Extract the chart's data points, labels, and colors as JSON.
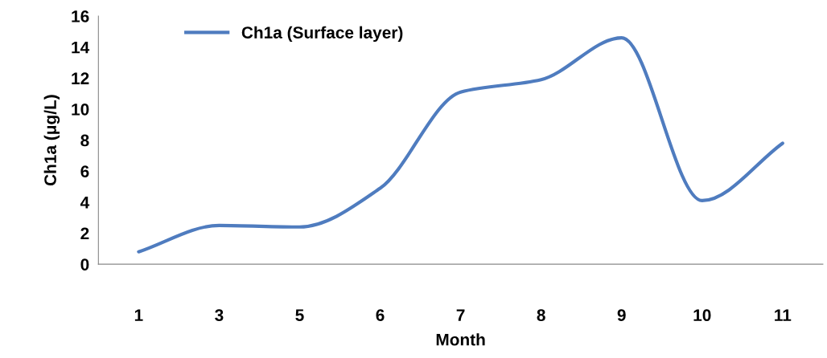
{
  "chart_data": {
    "type": "line",
    "xlabel": "Month",
    "ylabel": "Ch1a (μg/L)",
    "categories": [
      "1",
      "3",
      "5",
      "6",
      "7",
      "8",
      "9",
      "10",
      "11"
    ],
    "series": [
      {
        "name": "Ch1a (Surface layer)",
        "color": "#4f7cbf",
        "values": [
          0.8,
          2.5,
          2.4,
          4.9,
          11.1,
          11.9,
          14.6,
          4.1,
          7.8
        ]
      }
    ],
    "ylim": [
      0,
      16
    ],
    "yticks": [
      0,
      2,
      4,
      6,
      8,
      10,
      12,
      14,
      16
    ],
    "grid": false,
    "legend": "top left",
    "marker": "none",
    "line_style": "solid"
  }
}
